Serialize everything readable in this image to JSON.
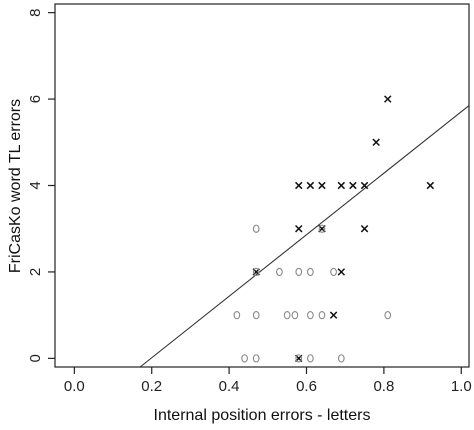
{
  "chart_data": {
    "type": "scatter",
    "title": "",
    "xlabel": "Internal position errors - letters",
    "ylabel": "FriCasKo word TL errors",
    "xlim": [
      -0.05,
      1.02
    ],
    "ylim": [
      -0.2,
      8.2
    ],
    "x_ticks": [
      "0.0",
      "0.2",
      "0.4",
      "0.6",
      "0.8",
      "1.0"
    ],
    "y_ticks": [
      "0",
      "2",
      "4",
      "6",
      "8"
    ],
    "grid": false,
    "legend": "none",
    "series": [
      {
        "marker": "x",
        "color": "#111111",
        "points": [
          [
            0.47,
            2
          ],
          [
            0.58,
            0
          ],
          [
            0.58,
            3
          ],
          [
            0.58,
            4
          ],
          [
            0.61,
            4
          ],
          [
            0.64,
            3
          ],
          [
            0.64,
            4
          ],
          [
            0.67,
            1
          ],
          [
            0.69,
            2
          ],
          [
            0.69,
            4
          ],
          [
            0.72,
            4
          ],
          [
            0.75,
            3
          ],
          [
            0.75,
            4
          ],
          [
            0.78,
            5
          ],
          [
            0.81,
            6
          ],
          [
            0.92,
            4
          ]
        ]
      },
      {
        "marker": "o",
        "color": "#888888",
        "points": [
          [
            0.42,
            1
          ],
          [
            0.44,
            0
          ],
          [
            0.47,
            0
          ],
          [
            0.47,
            1
          ],
          [
            0.47,
            2
          ],
          [
            0.47,
            3
          ],
          [
            0.53,
            2
          ],
          [
            0.55,
            1
          ],
          [
            0.57,
            1
          ],
          [
            0.58,
            0
          ],
          [
            0.58,
            2
          ],
          [
            0.61,
            0
          ],
          [
            0.61,
            1
          ],
          [
            0.61,
            2
          ],
          [
            0.64,
            1
          ],
          [
            0.64,
            3
          ],
          [
            0.67,
            2
          ],
          [
            0.69,
            0
          ],
          [
            0.81,
            1
          ]
        ]
      }
    ],
    "regression_line": {
      "x": [
        0.17,
        1.02
      ],
      "y": [
        -0.2,
        5.85
      ]
    }
  }
}
